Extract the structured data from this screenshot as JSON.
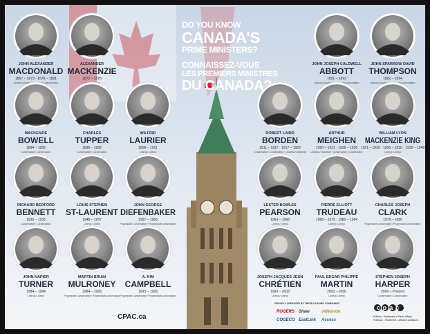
{
  "title": {
    "lines": [
      "DO YOU KNOW",
      "CANADA'S",
      "PRIME MINISTERS?",
      "CONNAISSEZ-VOUS",
      "LES PREMIERS MINISTRES",
      "DU CANADA?"
    ]
  },
  "prime_ministers": [
    {
      "first": "JOHN ALEXANDER",
      "last": "MACDONALD",
      "years": "1867 – 1873 · 1878 – 1891",
      "party": "Liberal-Conservative / Libéral-conservateur"
    },
    {
      "first": "ALEXANDER",
      "last": "MACKENZIE",
      "years": "1873 – 1878",
      "party": "Liberal / Libéral"
    },
    {
      "first": "JOHN JOSEPH CALDWELL",
      "last": "ABBOTT",
      "years": "1891 – 1892",
      "party": "Liberal-Conservative / Libéral-conservateur"
    },
    {
      "first": "JOHN SPARROW DAVID",
      "last": "THOMPSON",
      "years": "1892 – 1894",
      "party": "Liberal-Conservative / Libéral-conservateur"
    },
    {
      "first": "MACKENZIE",
      "last": "BOWELL",
      "years": "1894 – 1896",
      "party": "Conservative / Conservateur"
    },
    {
      "first": "CHARLES",
      "last": "TUPPER",
      "years": "1896 – 1896",
      "party": "Conservative / Conservateur"
    },
    {
      "first": "WILFRID",
      "last": "LAURIER",
      "years": "1896 – 1911",
      "party": "Liberal / Libéral"
    },
    {
      "first": "ROBERT LAIRD",
      "last": "BORDEN",
      "years": "1911 – 1917 · 1917 – 1920",
      "party": "Conservative / Conservateur · Unionist / Unioniste"
    },
    {
      "first": "ARTHUR",
      "last": "MEIGHEN",
      "years": "1920 – 1921 · 1926 – 1926",
      "party": "Unionist / Unioniste · Conservative / Conservateur"
    },
    {
      "first": "WILLIAM LYON",
      "last": "MACKENZIE KING",
      "years": "1921 – 1926 · 1926 – 1930 · 1935 – 1948",
      "party": "Liberal / Libéral"
    },
    {
      "first": "RICHARD BEDFORD",
      "last": "BENNETT",
      "years": "1930 – 1935",
      "party": "Conservative / Conservateur"
    },
    {
      "first": "LOUIS STEPHEN",
      "last": "ST-LAURENT",
      "years": "1948 – 1957",
      "party": "Liberal / Libéral"
    },
    {
      "first": "JOHN GEORGE",
      "last": "DIEFENBAKER",
      "years": "1957 – 1963",
      "party": "Progressive Conservative / Progressiste-conservateur"
    },
    {
      "first": "LESTER BOWLES",
      "last": "PEARSON",
      "years": "1963 – 1968",
      "party": "Liberal / Libéral"
    },
    {
      "first": "PIERRE ELLIOTT",
      "last": "TRUDEAU",
      "years": "1968 – 1979 · 1980 – 1984",
      "party": "Liberal / Libéral"
    },
    {
      "first": "CHARLES JOSEPH",
      "last": "CLARK",
      "years": "1979 – 1980",
      "party": "Progressive Conservative / Progressiste-conservateur"
    },
    {
      "first": "JOHN NAPIER",
      "last": "TURNER",
      "years": "1984 – 1984",
      "party": "Liberal / Libéral"
    },
    {
      "first": "MARTIN BRIAN",
      "last": "MULRONEY",
      "years": "1984 – 1993",
      "party": "Progressive Conservative / Progressiste-conservateur"
    },
    {
      "first": "A. KIM",
      "last": "CAMPBELL",
      "years": "1993 – 1993",
      "party": "Progressive Conservative / Progressiste-conservateur"
    },
    {
      "first": "JOSEPH JACQUES JEAN",
      "last": "CHRÉTIEN",
      "years": "1993 – 2003",
      "party": "Liberal / Libéral"
    },
    {
      "first": "PAUL EDGAR PHILIPPE",
      "last": "MARTIN",
      "years": "2003 – 2006",
      "party": "Liberal / Libéral"
    },
    {
      "first": "STEPHEN JOSEPH",
      "last": "HARPER",
      "years": "2006 – Present",
      "party": "Conservative / Conservateur"
    }
  ],
  "footer": {
    "website": "CPAC.ca",
    "sponsor_heading": "PROUDLY OPERATED BY THESE LEADING COMPANIES",
    "sponsors": [
      "ROGERS",
      "Shaw",
      "vidéotron",
      "COGECO",
      "EastLink",
      "Access"
    ],
    "logo": "cpac",
    "tagline": [
      "Politics • Parliament • Public Affairs",
      "Politique • Parlement • Affaires publiques"
    ]
  }
}
